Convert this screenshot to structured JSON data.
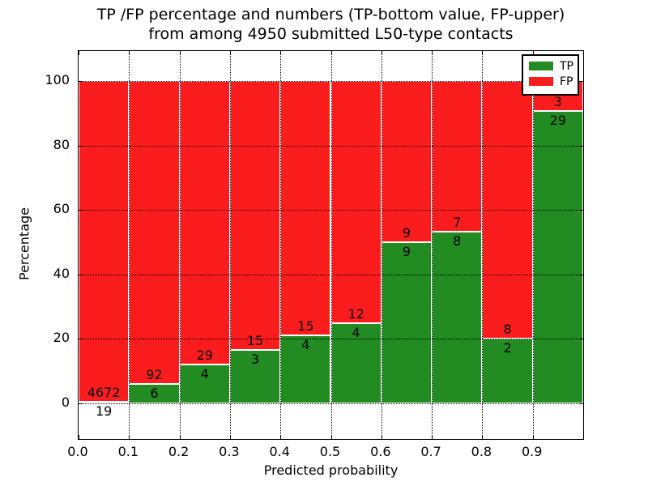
{
  "title": {
    "line1": "TP /FP percentage and numbers (TP-bottom value, FP-upper)",
    "line2": "from among 4950 submitted L50-type contacts"
  },
  "axes": {
    "xlabel": "Predicted probability",
    "ylabel": "Percentage",
    "x_ticks": [
      "0.0",
      "0.1",
      "0.2",
      "0.3",
      "0.4",
      "0.5",
      "0.6",
      "0.7",
      "0.8",
      "0.9"
    ],
    "y_ticks": [
      "0",
      "20",
      "40",
      "60",
      "80",
      "100"
    ]
  },
  "legend": {
    "position": "upper right",
    "items": [
      {
        "label": "TP",
        "color": "#228b22"
      },
      {
        "label": "FP",
        "color": "#fb1d1d"
      }
    ]
  },
  "chart_data": {
    "type": "bar",
    "stacked": true,
    "normalized_to_percent": true,
    "title": "TP /FP percentage and numbers (TP-bottom value, FP-upper) from among 4950 submitted L50-type contacts",
    "xlabel": "Predicted probability",
    "ylabel": "Percentage",
    "total_contacts": 4950,
    "bin_edges": [
      0.0,
      0.1,
      0.2,
      0.3,
      0.4,
      0.5,
      0.6,
      0.7,
      0.8,
      0.9,
      1.0
    ],
    "series": [
      {
        "name": "TP",
        "color": "#228b22",
        "counts": [
          19,
          6,
          4,
          3,
          4,
          4,
          9,
          8,
          2,
          29
        ]
      },
      {
        "name": "FP",
        "color": "#fb1d1d",
        "counts": [
          4672,
          92,
          29,
          15,
          15,
          12,
          9,
          7,
          8,
          3
        ]
      }
    ],
    "tp_percent_of_bin": [
      0.4,
      6.1,
      12.1,
      16.7,
      21.1,
      25.0,
      50.0,
      53.3,
      20.0,
      90.6
    ],
    "xlim": [
      0.0,
      1.0
    ],
    "ylim": [
      -11,
      109
    ],
    "grid": true,
    "grid_style": "dotted",
    "legend_position": "upper right"
  }
}
